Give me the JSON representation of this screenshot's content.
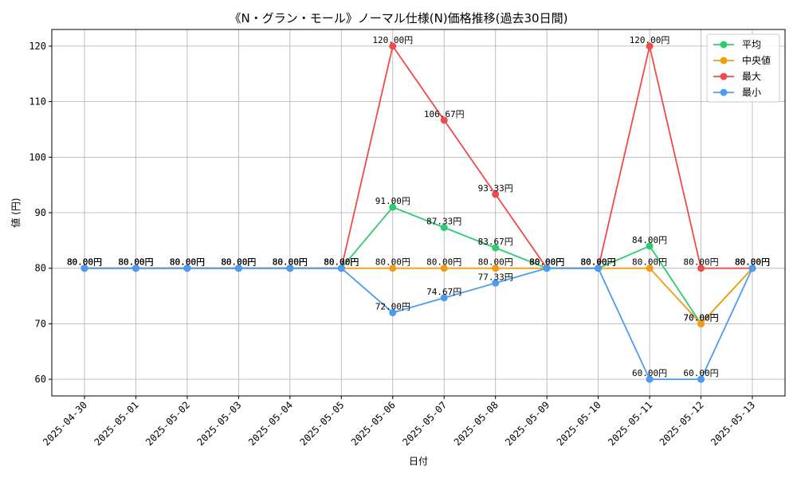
{
  "chart_data": {
    "type": "line",
    "title": "《N・グラン・モール》ノーマル仕様(N)価格推移(過去30日間)",
    "xlabel": "日付",
    "ylabel": "値 (円)",
    "categories": [
      "2025-04-30",
      "2025-05-01",
      "2025-05-02",
      "2025-05-03",
      "2025-05-04",
      "2025-05-05",
      "2025-05-06",
      "2025-05-07",
      "2025-05-08",
      "2025-05-09",
      "2025-05-10",
      "2025-05-11",
      "2025-05-12",
      "2025-05-13"
    ],
    "ylim": [
      57,
      123
    ],
    "yticks": [
      60,
      70,
      80,
      90,
      100,
      110,
      120
    ],
    "grid": true,
    "legend_position": "top-right",
    "value_suffix": "円",
    "series": [
      {
        "name": "平均",
        "color": "#2ecc71",
        "values": [
          80,
          80,
          80,
          80,
          80,
          80,
          91,
          87.33,
          83.67,
          80,
          80,
          84,
          70,
          80
        ]
      },
      {
        "name": "中央値",
        "color": "#f39c12",
        "values": [
          80,
          80,
          80,
          80,
          80,
          80,
          80,
          80,
          80,
          80,
          80,
          80,
          70,
          80
        ]
      },
      {
        "name": "最大",
        "color": "#ef4b4b",
        "values": [
          80,
          80,
          80,
          80,
          80,
          80,
          120,
          106.67,
          93.33,
          80,
          80,
          120,
          80,
          80
        ]
      },
      {
        "name": "最小",
        "color": "#4b9bf2",
        "values": [
          80,
          80,
          80,
          80,
          80,
          80,
          72,
          74.67,
          77.33,
          80,
          80,
          60,
          60,
          80
        ]
      }
    ]
  }
}
